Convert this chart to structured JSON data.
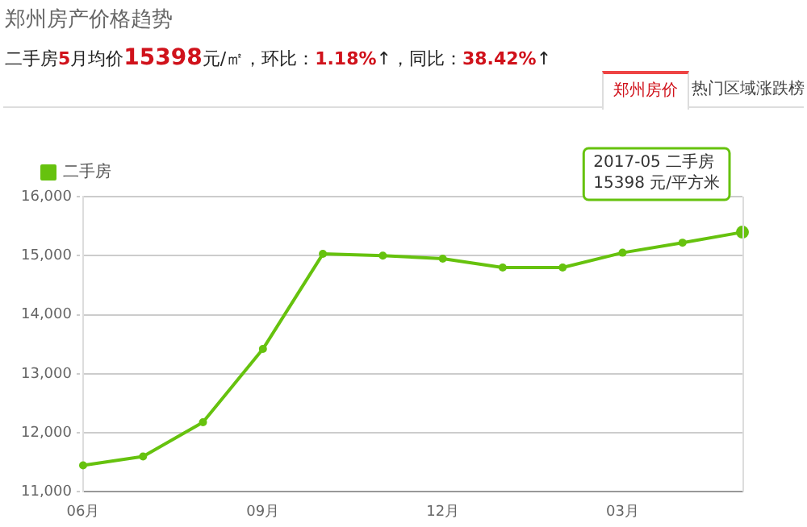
{
  "chart_data": {
    "type": "line",
    "title": "郑州房产价格趋势",
    "subtitle": "二手房5月均价15398元/㎡，环比：1.18%↑，同比：38.42%↑",
    "categories": [
      "06月",
      null,
      null,
      "09月",
      null,
      null,
      "12月",
      null,
      null,
      "03月",
      null,
      null
    ],
    "series": [
      {
        "name": "二手房",
        "color": "#66c20e",
        "values": [
          11450,
          11600,
          12180,
          13420,
          15030,
          15000,
          14950,
          14800,
          14800,
          15050,
          15220,
          15398
        ]
      }
    ],
    "ylim": [
      11000,
      16000
    ],
    "yticks": [
      {
        "value": 11000,
        "label": "11,000"
      },
      {
        "value": 12000,
        "label": "12,000"
      },
      {
        "value": 13000,
        "label": "13,000"
      },
      {
        "value": 14000,
        "label": "14,000"
      },
      {
        "value": 15000,
        "label": "15,000"
      },
      {
        "value": 16000,
        "label": "16,000"
      }
    ],
    "annotations": [
      "2017-05 二手房\n15398 元/平方米",
      "郑州房价",
      "热门区域涨跌榜"
    ],
    "grid": "y",
    "legend": "top left",
    "marker": "circle",
    "line_style": "solid"
  }
}
